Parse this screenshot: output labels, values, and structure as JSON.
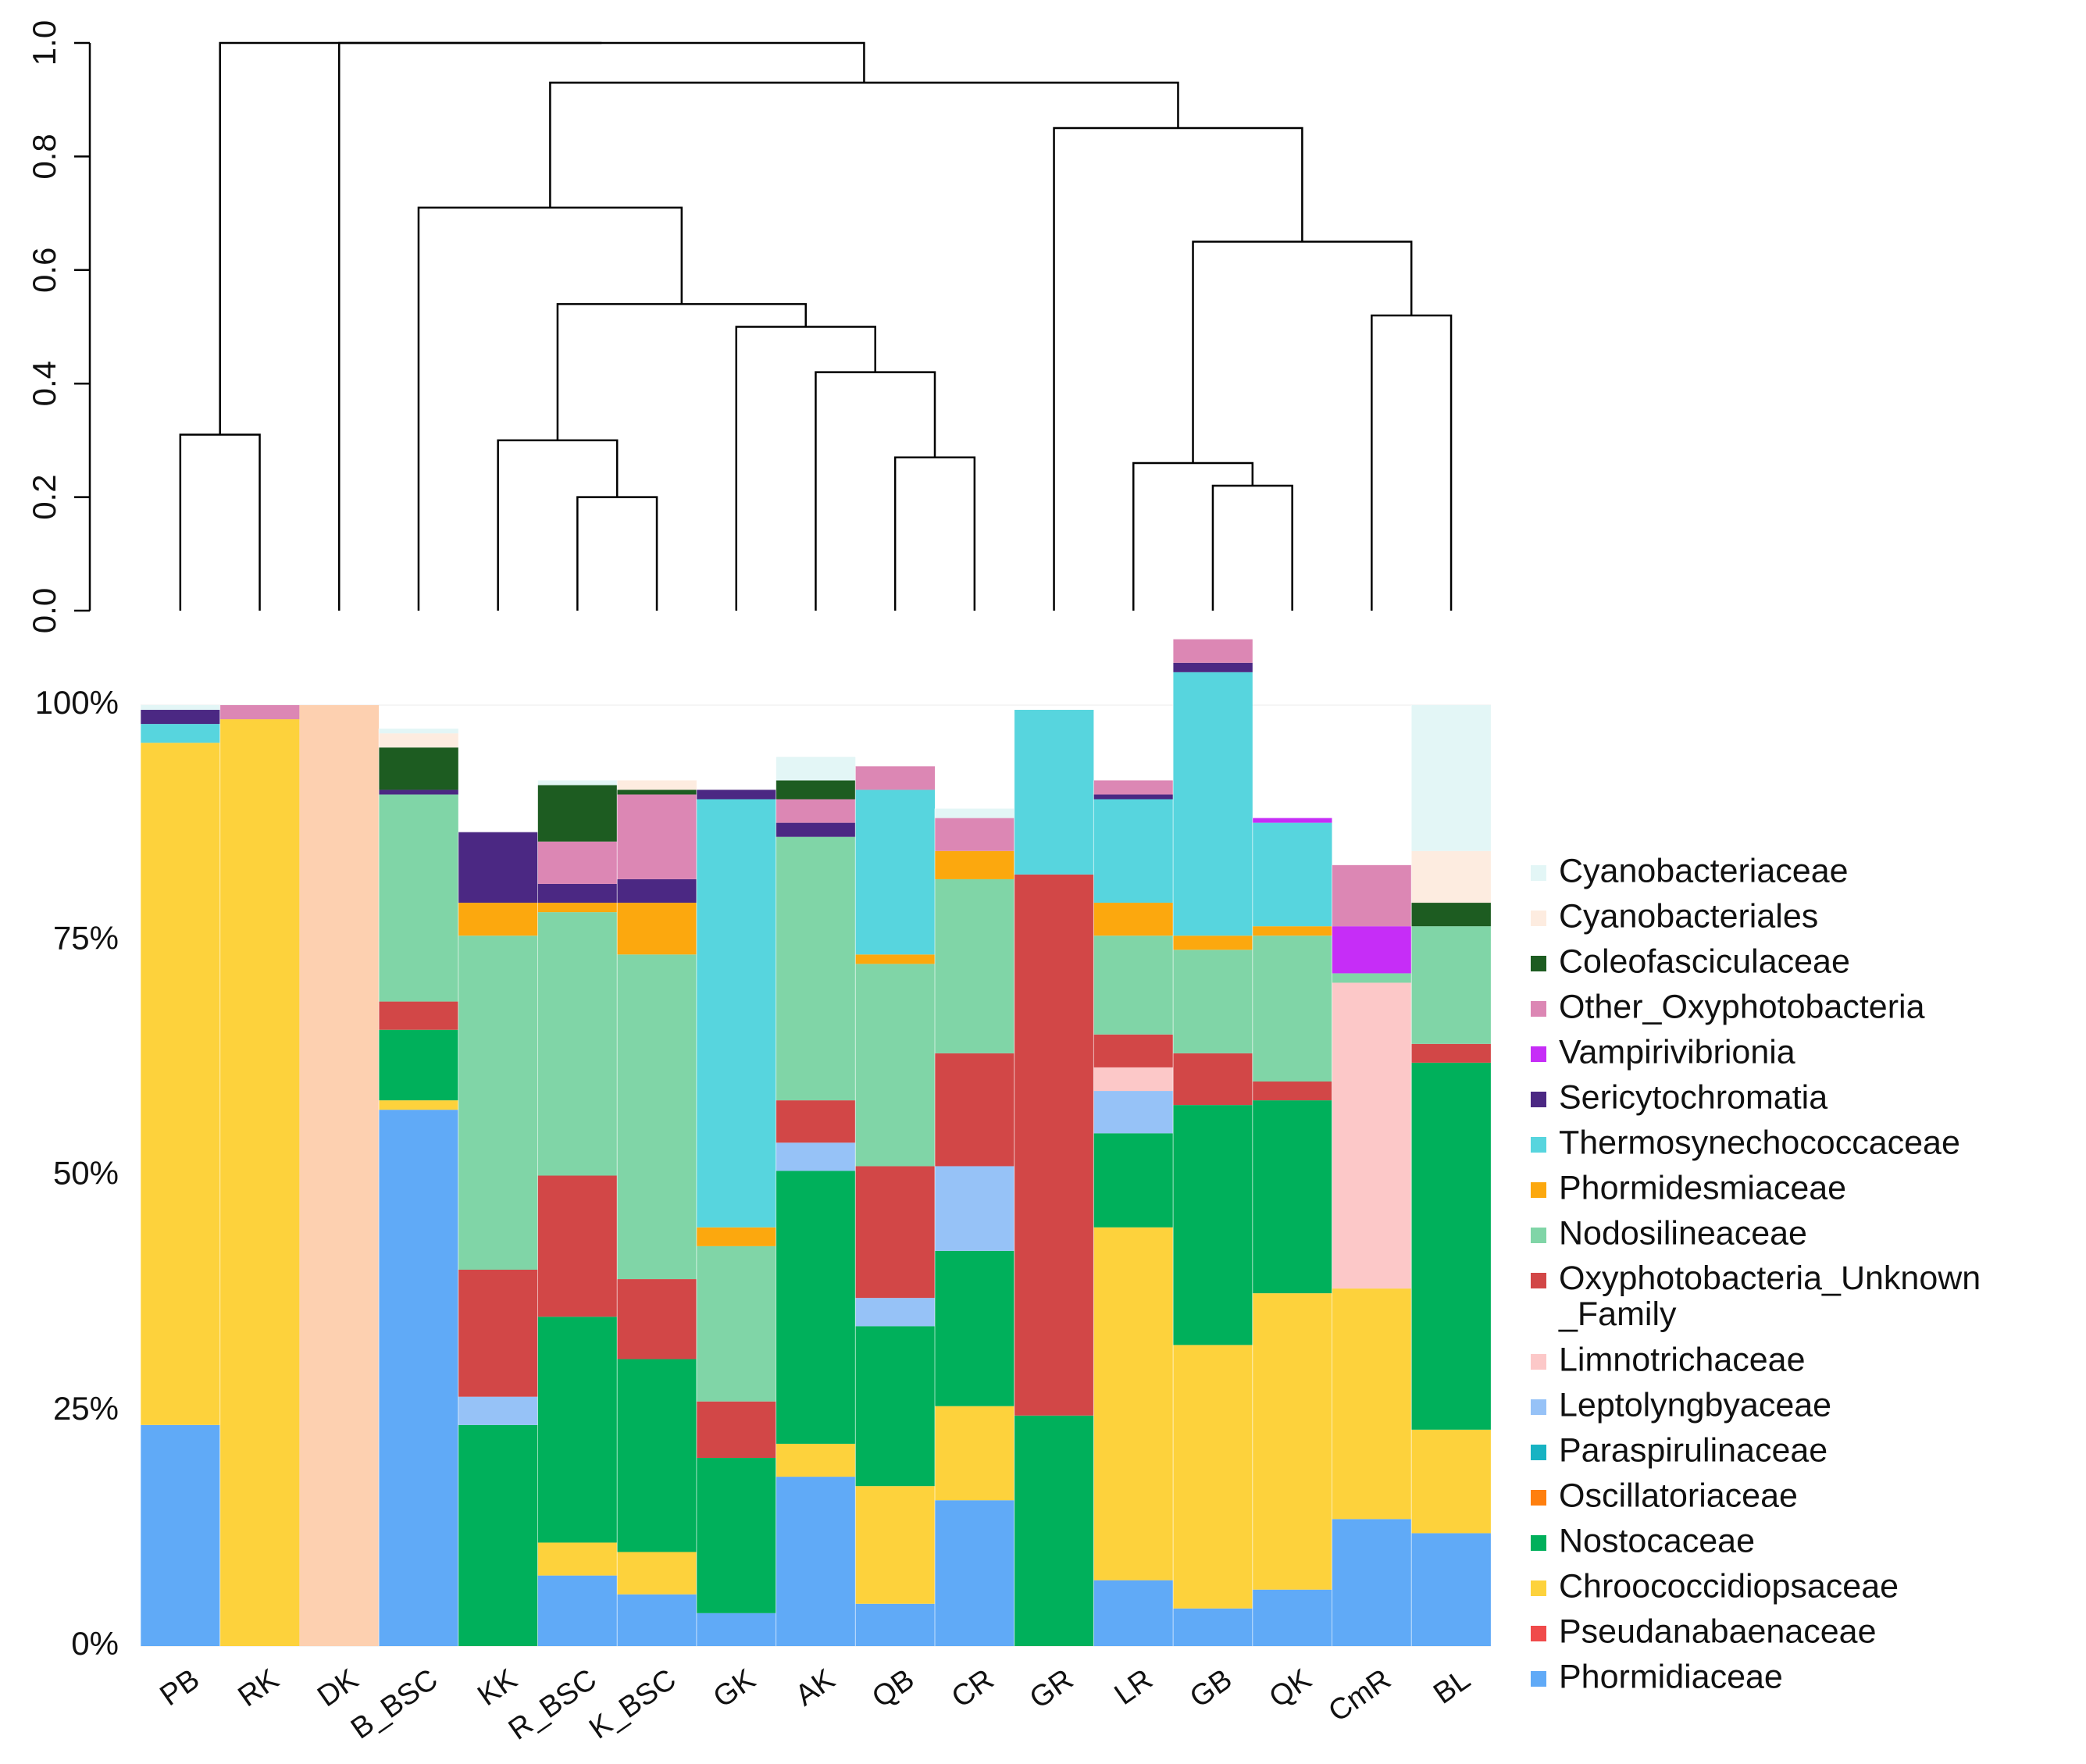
{
  "chart_data": [
    {
      "type": "dendrogram",
      "ylim": [
        0,
        1.0
      ],
      "y_ticks": [
        "0.0",
        "0.2",
        "0.4",
        "0.6",
        "0.8",
        "1.0"
      ],
      "leaves": [
        "PB",
        "RK",
        "DK",
        "B_BSC",
        "KK",
        "R_BSC",
        "K_BSC",
        "GK",
        "AK",
        "QB",
        "CR",
        "GR",
        "LR",
        "GB",
        "QK",
        "CmR",
        "BL"
      ],
      "merges": [
        {
          "id": "m1",
          "a": "PB",
          "b": "RK",
          "height": 0.31
        },
        {
          "id": "m2",
          "a": "R_BSC",
          "b": "K_BSC",
          "height": 0.2
        },
        {
          "id": "m3",
          "a": "KK",
          "b": "m2",
          "height": 0.3
        },
        {
          "id": "m4",
          "a": "QB",
          "b": "CR",
          "height": 0.27
        },
        {
          "id": "m5",
          "a": "AK",
          "b": "m4",
          "height": 0.42
        },
        {
          "id": "m6",
          "a": "GK",
          "b": "m5",
          "height": 0.5
        },
        {
          "id": "m7",
          "a": "m3",
          "b": "m6",
          "height": 0.54
        },
        {
          "id": "m8",
          "a": "B_BSC",
          "b": "m7",
          "height": 0.71
        },
        {
          "id": "m9",
          "a": "GB",
          "b": "QK",
          "height": 0.22
        },
        {
          "id": "m10",
          "a": "LR",
          "b": "m9",
          "height": 0.26
        },
        {
          "id": "m11",
          "a": "CmR",
          "b": "BL",
          "height": 0.52
        },
        {
          "id": "m12",
          "a": "m10",
          "b": "m11",
          "height": 0.65
        },
        {
          "id": "m13",
          "a": "GR",
          "b": "m12",
          "height": 0.85
        },
        {
          "id": "m14",
          "a": "m8",
          "b": "m13",
          "height": 0.93
        },
        {
          "id": "m15",
          "a": "DK",
          "b": "m14",
          "height": 1.0
        },
        {
          "id": "m16",
          "a": "m1",
          "b": "m15",
          "height": 1.0
        }
      ]
    },
    {
      "type": "bar",
      "stacked": true,
      "categories": [
        "PB",
        "RK",
        "DK",
        "B_BSC",
        "KK",
        "R_BSC",
        "K_BSC",
        "GK",
        "AK",
        "QB",
        "CR",
        "GR",
        "LR",
        "GB",
        "QK",
        "CmR",
        "BL"
      ],
      "y_ticks": [
        "0%",
        "25%",
        "50%",
        "75%",
        "100%"
      ],
      "ylim": [
        0,
        100
      ],
      "legend_position": "right",
      "series": [
        {
          "name": "Phormidiaceae",
          "color": "#60aaf7",
          "values": [
            23.5,
            0,
            0,
            57,
            0,
            7.5,
            5.5,
            3.5,
            18,
            4.5,
            15.5,
            0,
            7,
            4,
            6,
            13.5,
            12
          ]
        },
        {
          "name": "Pseudanabaenaceae",
          "color": "#f04a4a",
          "values": [
            0,
            0,
            0,
            0,
            0,
            0,
            0,
            0,
            0,
            0,
            0,
            0,
            0,
            0,
            0,
            0,
            0
          ]
        },
        {
          "name": "Chroococcidiopsaceae",
          "color": "#fdd23c",
          "values": [
            72.5,
            98.5,
            0,
            1,
            0,
            3.5,
            4.5,
            0,
            3.5,
            12.5,
            10,
            0,
            37.5,
            28,
            31.5,
            24.5,
            11
          ]
        },
        {
          "name": "Nostocaceae",
          "color": "#00b05b",
          "values": [
            0,
            0,
            0,
            7.5,
            23.5,
            24,
            20.5,
            16.5,
            29,
            17,
            16.5,
            24.5,
            10,
            25.5,
            20.5,
            0,
            39
          ]
        },
        {
          "name": "Oscillatoriaceae",
          "color": "#ff7f0e",
          "values": [
            0,
            0,
            0,
            0,
            0,
            0,
            0,
            0,
            0,
            0,
            0,
            0,
            0,
            0,
            0,
            0,
            0
          ]
        },
        {
          "name": "Paraspirulinaceae",
          "color": "#17b3c3",
          "values": [
            0,
            0,
            0,
            0,
            0,
            0,
            0,
            0,
            0,
            0,
            0,
            0,
            0,
            0,
            0,
            0,
            0
          ]
        },
        {
          "name": "Leptolyngbyaceae",
          "color": "#96c2f7",
          "values": [
            0,
            0,
            0,
            0,
            3,
            0,
            0,
            0,
            3,
            3,
            9,
            0,
            4.5,
            0,
            0,
            0,
            0
          ]
        },
        {
          "name": "Limnotrichaceae",
          "color": "#fcc8c8",
          "values": [
            0,
            0,
            0,
            0,
            0,
            0,
            0,
            0,
            0,
            0,
            0,
            0,
            2.5,
            0,
            0,
            32.5,
            0
          ]
        },
        {
          "name": "Oxyphotobacteria_Unknown_Family",
          "color": "#d24747",
          "values": [
            0,
            0,
            0,
            3,
            13.5,
            15,
            8.5,
            6,
            4.5,
            14,
            12,
            57.5,
            3.5,
            5.5,
            2,
            0,
            2
          ]
        },
        {
          "name": "Nodosilineaceae",
          "color": "#80d5a7",
          "values": [
            0,
            0,
            0,
            22,
            35.5,
            28,
            34.5,
            16.5,
            28,
            21.5,
            18.5,
            0,
            10.5,
            11,
            15.5,
            1,
            12.5
          ]
        },
        {
          "name": "Phormidesmiaceae",
          "color": "#fca80e",
          "values": [
            0,
            0,
            0,
            0,
            3.5,
            1,
            5.5,
            2,
            0,
            1,
            3,
            0,
            3.5,
            1.5,
            1,
            0,
            0
          ]
        },
        {
          "name": "Thermosynechococcaceae",
          "color": "#57d5de",
          "values": [
            2,
            0,
            0,
            0,
            0,
            0,
            0,
            45.5,
            0,
            17.5,
            0,
            17.5,
            11,
            28,
            11,
            0,
            0
          ]
        },
        {
          "name": "Sericytochromatia",
          "color": "#4b2883",
          "values": [
            1.5,
            0,
            0,
            0.5,
            7.5,
            2,
            2.5,
            1,
            1.5,
            0,
            0,
            0,
            0.5,
            1,
            0,
            0,
            0
          ]
        },
        {
          "name": "Vampirivibrionia",
          "color": "#c62df7",
          "values": [
            0,
            0,
            0,
            0,
            0,
            0,
            0,
            0,
            0,
            0,
            0,
            0,
            0,
            0,
            0.5,
            5,
            0
          ]
        },
        {
          "name": "Other_Oxyphotobacteria",
          "color": "#dc87b4",
          "values": [
            0,
            1.5,
            0,
            0,
            0,
            4.5,
            9,
            0,
            2.5,
            2.5,
            3.5,
            0,
            1.5,
            2.5,
            0,
            6.5,
            0
          ]
        },
        {
          "name": "Coleofasciculaceae",
          "color": "#1d5c21",
          "values": [
            0,
            0,
            0,
            4.5,
            0,
            6,
            0.5,
            0,
            2,
            0,
            0,
            0,
            0,
            0,
            0,
            0,
            2.5
          ]
        },
        {
          "name": "Cyanobacteriales",
          "color": "#fdece0",
          "values": [
            0,
            0,
            0,
            1.5,
            0,
            0,
            1,
            0,
            0,
            0,
            0,
            0,
            0,
            0,
            0,
            0,
            5.5
          ]
        },
        {
          "name": "Cyanobacteriaceae",
          "color": "#e3f6f6",
          "values": [
            0.5,
            0,
            0,
            0.5,
            0,
            0.5,
            0,
            0,
            2.5,
            0,
            1,
            0,
            0,
            0,
            0,
            0,
            15.5
          ]
        }
      ],
      "special_bars": [
        {
          "category": "DK",
          "name": "Cyanobacteriales",
          "color": "#fdd0b0",
          "value": 100
        }
      ]
    }
  ]
}
